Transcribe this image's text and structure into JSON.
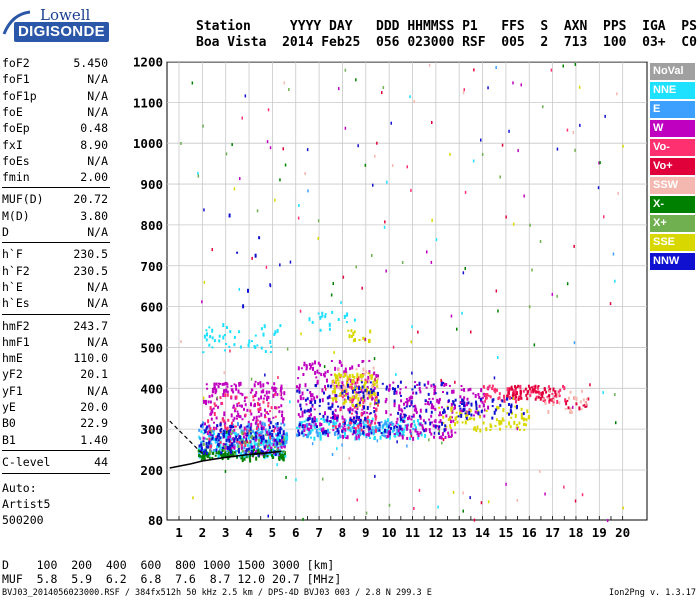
{
  "logo": {
    "line1": "Lowell",
    "line2": "DIGISONDE"
  },
  "header": {
    "row1": "Station     YYYY DAY   DDD HHMMSS P1   FFS  S  AXN  PPS  IGA  PS",
    "row2": "Boa Vista  2014 Feb25  056 023000 RSF  005  2  713  100  03+  C0"
  },
  "params": [
    {
      "name": "foF2",
      "value": "5.450"
    },
    {
      "name": "foF1",
      "value": "N/A"
    },
    {
      "name": "foF1p",
      "value": "N/A"
    },
    {
      "name": "foE",
      "value": "N/A"
    },
    {
      "name": "foEp",
      "value": "0.48"
    },
    {
      "name": "fxI",
      "value": "8.90"
    },
    {
      "name": "foEs",
      "value": "N/A"
    },
    {
      "name": "fmin",
      "value": "2.00"
    },
    {
      "name": "MUF(D)",
      "value": "20.72"
    },
    {
      "name": "M(D)",
      "value": "3.80"
    },
    {
      "name": "D",
      "value": "N/A"
    },
    {
      "name": "h`F",
      "value": "230.5"
    },
    {
      "name": "h`F2",
      "value": "230.5"
    },
    {
      "name": "h`E",
      "value": "N/A"
    },
    {
      "name": "h`Es",
      "value": "N/A"
    },
    {
      "name": "hmF2",
      "value": "243.7"
    },
    {
      "name": "hmF1",
      "value": "N/A"
    },
    {
      "name": "hmE",
      "value": "110.0"
    },
    {
      "name": "yF2",
      "value": "20.1"
    },
    {
      "name": "yF1",
      "value": "N/A"
    },
    {
      "name": "yE",
      "value": "20.0"
    },
    {
      "name": "B0",
      "value": "22.9"
    },
    {
      "name": "B1",
      "value": "1.40"
    },
    {
      "name": "C-level",
      "value": "44"
    }
  ],
  "notes": [
    "Auto:",
    "Artist5",
    "500200"
  ],
  "legend": [
    {
      "label": "NoVal",
      "color": "#a0a0a0"
    },
    {
      "label": "NNE",
      "color": "#1ee0ff"
    },
    {
      "label": "E",
      "color": "#3da0ff"
    },
    {
      "label": "W",
      "color": "#c000c0"
    },
    {
      "label": "Vo-",
      "color": "#ff3070"
    },
    {
      "label": "Vo+",
      "color": "#e0003a"
    },
    {
      "label": "SSW",
      "color": "#f4b8b0"
    },
    {
      "label": "X-",
      "color": "#008000"
    },
    {
      "label": "X+",
      "color": "#70b050"
    },
    {
      "label": "SSE",
      "color": "#d8d800"
    },
    {
      "label": "NNW",
      "color": "#1010d0"
    }
  ],
  "dmuf": {
    "row1": "D    100  200  400  600  800 1000 1500 3000 [km]",
    "row2": "MUF  5.8  5.9  6.2  6.8  7.6  8.7 12.0 20.7 [MHz]"
  },
  "footer": "BVJ03_2014056023000.RSF / 384fx512h 50 kHz 2.5 km / DPS-4D BVJ03 003 / 2.8 N 299.3 E",
  "version": "Ion2Png v. 1.3.17",
  "chart_data": {
    "type": "scatter",
    "xlabel": "",
    "ylabel": "",
    "xlim": [
      0.6,
      20.3
    ],
    "ylim": [
      80,
      1200
    ],
    "x_ticks": [
      1,
      2,
      3,
      4,
      5,
      6,
      7,
      8,
      9,
      10,
      11,
      12,
      13,
      14,
      15,
      16,
      17,
      18,
      19,
      20
    ],
    "y_ticks": [
      80,
      200,
      300,
      400,
      500,
      600,
      700,
      800,
      900,
      1000,
      1100,
      1200
    ],
    "grid": true,
    "series": [
      {
        "name": "NNE",
        "clusters": [
          {
            "x": [
              1.8,
              5.6
            ],
            "y": [
              235,
              300
            ],
            "n": 260
          },
          {
            "x": [
              2.0,
              5.4
            ],
            "y": [
              490,
              560
            ],
            "n": 45
          },
          {
            "x": [
              6.0,
              11.5
            ],
            "y": [
              280,
              330
            ],
            "n": 160
          },
          {
            "x": [
              6.5,
              8.5
            ],
            "y": [
              545,
              590
            ],
            "n": 18
          }
        ]
      },
      {
        "name": "E",
        "clusters": [
          {
            "x": [
              1.8,
              5.6
            ],
            "y": [
              240,
              320
            ],
            "n": 150
          },
          {
            "x": [
              6.0,
              11.0
            ],
            "y": [
              285,
              320
            ],
            "n": 90
          }
        ]
      },
      {
        "name": "W",
        "clusters": [
          {
            "x": [
              2.0,
              5.5
            ],
            "y": [
              240,
              420
            ],
            "n": 260
          },
          {
            "x": [
              6.0,
              9.5
            ],
            "y": [
              280,
              470
            ],
            "n": 230
          },
          {
            "x": [
              9.8,
              12.8
            ],
            "y": [
              280,
              420
            ],
            "n": 160
          },
          {
            "x": [
              13.0,
              14.2
            ],
            "y": [
              330,
              410
            ],
            "n": 40
          }
        ]
      },
      {
        "name": "Vo-",
        "clusters": [
          {
            "x": [
              2.2,
              5.2
            ],
            "y": [
              260,
              390
            ],
            "n": 70
          },
          {
            "x": [
              7.5,
              9.5
            ],
            "y": [
              300,
              440
            ],
            "n": 60
          },
          {
            "x": [
              14.0,
              17.5
            ],
            "y": [
              370,
              410
            ],
            "n": 70
          }
        ]
      },
      {
        "name": "Vo+",
        "clusters": [
          {
            "x": [
              15.0,
              17.2
            ],
            "y": [
              375,
              410
            ],
            "n": 60
          },
          {
            "x": [
              17.5,
              18.5
            ],
            "y": [
              355,
              380
            ],
            "n": 12
          }
        ]
      },
      {
        "name": "SSW",
        "clusters": [
          {
            "x": [
              7.5,
              9.5
            ],
            "y": [
              360,
              460
            ],
            "n": 45
          },
          {
            "x": [
              16.5,
              18.5
            ],
            "y": [
              340,
              400
            ],
            "n": 25
          }
        ]
      },
      {
        "name": "X-",
        "clusters": [
          {
            "x": [
              1.8,
              5.5
            ],
            "y": [
              228,
              252
            ],
            "n": 90
          }
        ]
      },
      {
        "name": "X+",
        "clusters": [
          {
            "x": [
              2.0,
              5.5
            ],
            "y": [
              240,
              300
            ],
            "n": 50
          }
        ]
      },
      {
        "name": "SSE",
        "clusters": [
          {
            "x": [
              7.5,
              9.5
            ],
            "y": [
              360,
              440
            ],
            "n": 100
          },
          {
            "x": [
              8.2,
              9.2
            ],
            "y": [
              520,
              545
            ],
            "n": 15
          },
          {
            "x": [
              12.0,
              16.0
            ],
            "y": [
              300,
              360
            ],
            "n": 90
          }
        ]
      },
      {
        "name": "NNW",
        "clusters": [
          {
            "x": [
              1.8,
              5.5
            ],
            "y": [
              240,
              320
            ],
            "n": 120
          },
          {
            "x": [
              6.0,
              12.5
            ],
            "y": [
              290,
              420
            ],
            "n": 170
          },
          {
            "x": [
              12.5,
              15.8
            ],
            "y": [
              330,
              380
            ],
            "n": 50
          },
          {
            "x": [
              3.0,
              5.0
            ],
            "y": [
              600,
              900
            ],
            "n": 6
          }
        ]
      }
    ],
    "scatter_noise": {
      "x": [
        1.0,
        20.0
      ],
      "y": [
        80,
        1200
      ],
      "n": 220
    },
    "trace": {
      "name": "profile",
      "x": [
        0.6,
        1.5,
        2.0,
        3.0,
        4.0,
        5.0,
        5.4
      ],
      "y": [
        205,
        215,
        222,
        231,
        238,
        243,
        246
      ]
    },
    "trace_dash": {
      "name": "profile-ext",
      "x": [
        0.6,
        2.0
      ],
      "y": [
        320,
        240
      ]
    }
  }
}
